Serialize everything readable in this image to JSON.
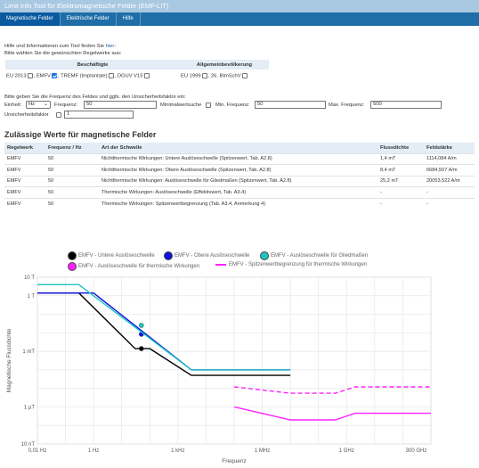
{
  "app": {
    "title": "Limit Info Tool für Elektromagnetische Felder (EMF-LIT)"
  },
  "tabs": [
    {
      "label": "Magnetische Felder",
      "active": true
    },
    {
      "label": "Elektrische Felder",
      "active": false
    },
    {
      "label": "Hilfe",
      "active": false
    }
  ],
  "intro": {
    "help_text": "Hilfe und Informationen zum Tool finden Sie",
    "help_link": "hier",
    "select_rules": "Bitte wählen Sie die gewünschten Regelwerke aus:"
  },
  "rules": {
    "group_workers": "Beschäftigte",
    "group_public": "Allgemeinbevölkerung",
    "eu2013": "EU 2013",
    "emfv": "EMFV",
    "tremf": "TREMF (Implantate)",
    "dguv": "DGUV V15",
    "eu1999": "EU 1999",
    "bimschv": "26. BImSchV",
    "comma": ","
  },
  "freq": {
    "prompt": "Bitte geben Sie die Frequenz des Feldes und ggfs. den Unsicherheitsfaktor ein:",
    "unit_label": "Einheit:",
    "unit_value": "Hz",
    "freq_label": "Frequenz:",
    "freq_value": "50",
    "minsearch_label": "Minimalwertsuche",
    "min_label": "Min. Frequenz:",
    "min_value": "50",
    "max_label": "Max. Frequenz:",
    "max_value": "500",
    "uncert_label": "Unsicherheitsfaktor",
    "uncert_value": "1"
  },
  "results": {
    "heading": "Zulässige Werte für magnetische Felder",
    "headers": [
      "Regelwerk",
      "Frequenz / Hz",
      "Art der Schwelle",
      "Flussdichte",
      "Feldstärke"
    ],
    "rows": [
      [
        "EMFV",
        "50",
        "Nichtthermische Wirkungen: Untere Auslöseschwelle (Spitzenwert, Tab. A2.8)",
        "1,4 mT",
        "1114,084 A/m"
      ],
      [
        "EMFV",
        "50",
        "Nichtthermische Wirkungen: Obere Auslöseschwelle (Spitzenwert, Tab. A2.8)",
        "8,4 mT",
        "6684,507 A/m"
      ],
      [
        "EMFV",
        "50",
        "Nichtthermische Wirkungen: Auslöseschwelle für Gliedmaßen (Spitzenwert, Tab. A2.8)",
        "25,2 mT",
        "20053,522 A/m"
      ],
      [
        "EMFV",
        "50",
        "Thermische Wirkungen: Auslöseschwelle (Effektivwert, Tab. A3.4)",
        "-",
        "-"
      ],
      [
        "EMFV",
        "50",
        "Thermische Wirkungen: Spitzenwertbegrenzung (Tab. A3.4, Anmerkung 4)",
        "-",
        "-"
      ]
    ]
  },
  "chart_data": {
    "type": "line",
    "xlabel": "Frequenz",
    "ylabel": "Magnetische Flussdichte",
    "x_scale": "log",
    "y_scale": "log",
    "xlim": [
      "0,01 Hz",
      "1 THz"
    ],
    "ylim": [
      "10 nT",
      "10 T"
    ],
    "x_ticks": [
      "0,01 Hz",
      "1 Hz",
      "1 kHz",
      "1 MHz",
      "1 GHz",
      "300 GHz"
    ],
    "y_ticks": [
      "10 T",
      "1 T",
      "1 mT",
      "1 µT",
      "10 nT"
    ],
    "grid": true,
    "legend_position": "top",
    "legend": [
      {
        "name": "EMFV - Untere Auslöseschwelle",
        "color": "#000000",
        "style": "dot"
      },
      {
        "name": "EMFV - Obere Auslöseschwelle",
        "color": "#1010e0",
        "style": "dot"
      },
      {
        "name": "EMFV - Auslöseschwelle für Gliedmaßen",
        "color": "#1cc5c0",
        "style": "dot"
      },
      {
        "name": "EMFV - Auslöseschwelle für thermische Wirkungen",
        "color": "#ff20ff",
        "style": "dot"
      },
      {
        "name": "EMFV - Spitzenwertbegrenzung für thermische Wirkungen",
        "color": "#ff20ff",
        "style": "line"
      }
    ],
    "series": [
      {
        "name": "EMFV - Untere Auslöseschwelle",
        "color": "#000000",
        "dash": false,
        "points": [
          [
            0.01,
            1.4
          ],
          [
            0.3,
            1.4
          ],
          [
            30,
            0.0014
          ],
          [
            50,
            0.0014
          ],
          [
            100,
            0.0014
          ],
          [
            3000,
            5e-05
          ],
          [
            10000000,
            5e-05
          ]
        ],
        "marker": [
          50,
          0.0014
        ]
      },
      {
        "name": "EMFV - Obere Auslöseschwelle",
        "color": "#1010e0",
        "dash": false,
        "points": [
          [
            0.01,
            1.4
          ],
          [
            1,
            1.4
          ],
          [
            3000,
            0.0001
          ],
          [
            10000000,
            0.0001
          ]
        ],
        "marker": [
          50,
          0.0084
        ]
      },
      {
        "name": "EMFV - Auslöseschwelle für Gliedmaßen",
        "color": "#1cc5c0",
        "dash": false,
        "points": [
          [
            0.01,
            4
          ],
          [
            0.3,
            4
          ],
          [
            3000,
            0.0001
          ],
          [
            10000000,
            0.0001
          ]
        ],
        "marker": [
          50,
          0.0252
        ]
      },
      {
        "name": "EMFV - Auslöseschwelle für thermische Wirkungen",
        "color": "#ff20ff",
        "dash": false,
        "points": [
          [
            100000,
            1e-06
          ],
          [
            10000000,
            2e-07
          ],
          [
            400000000,
            2e-07
          ],
          [
            2000000000,
            4.5e-07
          ],
          [
            1000000000000,
            4.5e-07
          ]
        ]
      },
      {
        "name": "EMFV - Spitzenwertbegrenzung für thermische Wirkungen",
        "color": "#ff20ff",
        "dash": true,
        "points": [
          [
            100000,
            1.2e-05
          ],
          [
            10000000,
            5.5e-06
          ],
          [
            400000000,
            5.5e-06
          ],
          [
            2000000000,
            1.2e-05
          ],
          [
            1000000000000,
            1.2e-05
          ]
        ]
      }
    ]
  }
}
